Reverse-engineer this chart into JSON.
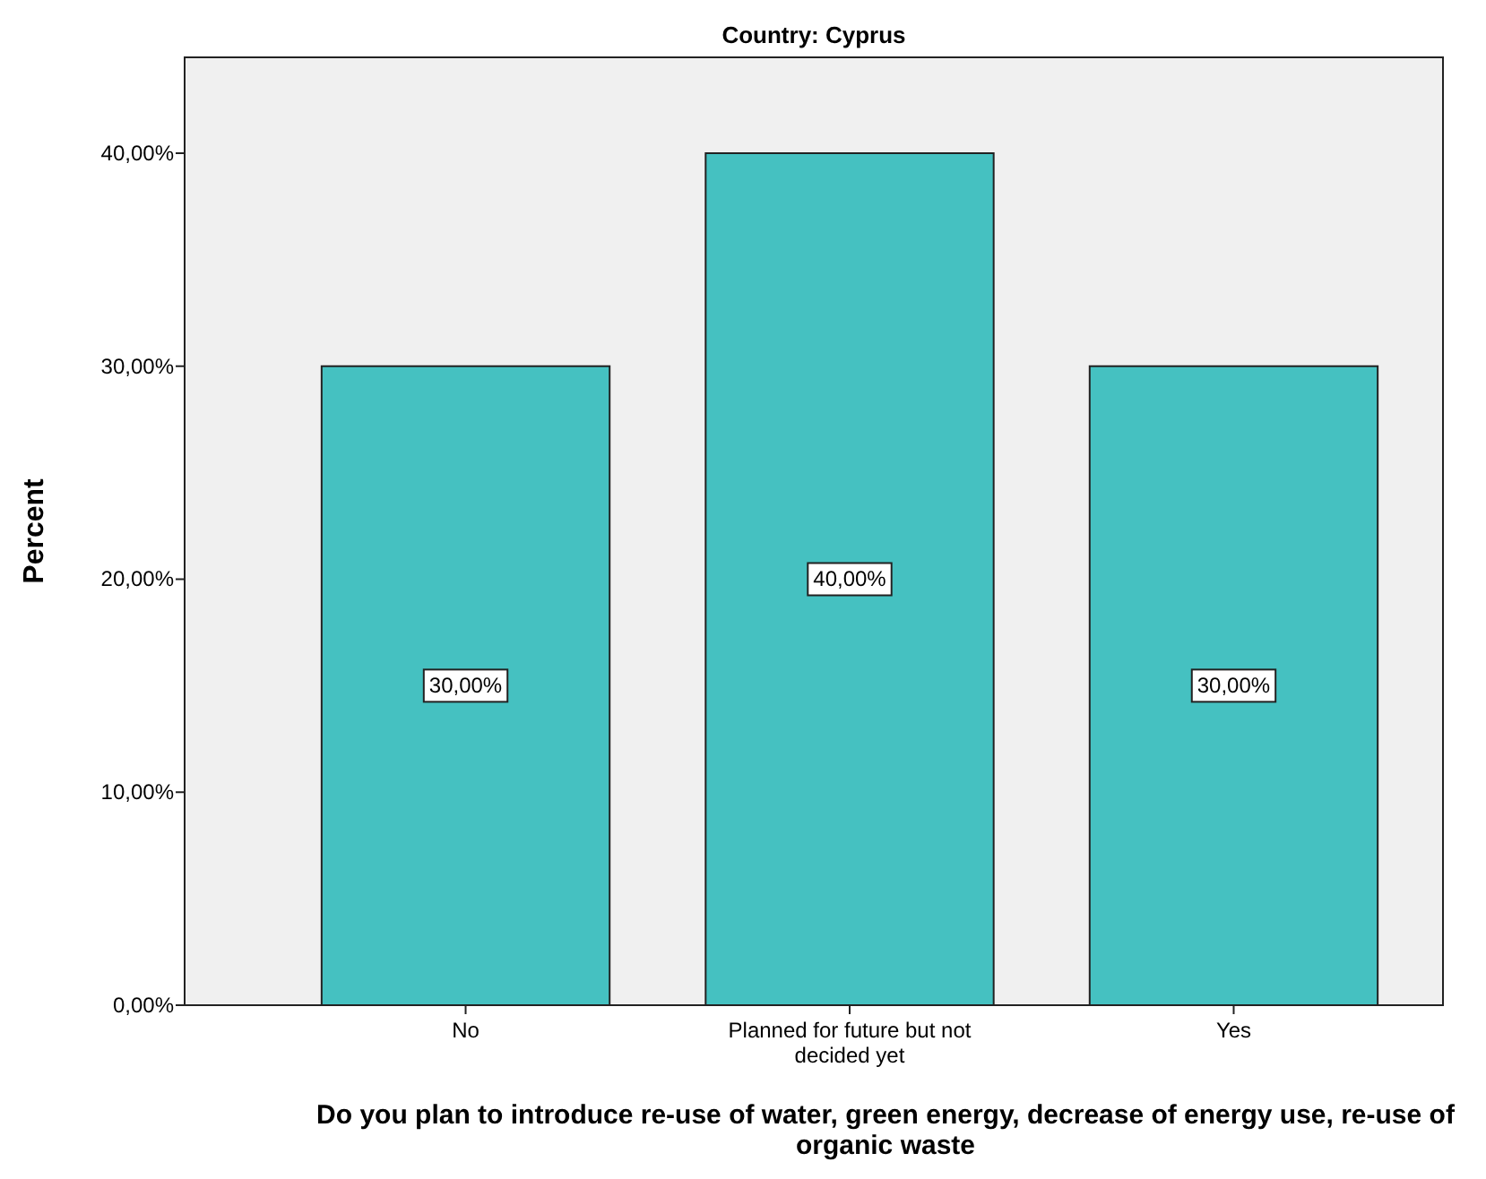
{
  "chart_data": {
    "type": "bar",
    "title": "Country: Cyprus",
    "xlabel": "Do you plan to introduce re-use of water, green energy, decrease of energy use, re-use of organic waste",
    "ylabel": "Percent",
    "categories": [
      "No",
      "Planned for future but not decided yet",
      "Yes"
    ],
    "values": [
      30,
      40,
      30
    ],
    "color": "#45c1c1",
    "value_labels": [
      "30,00%",
      "40,00%",
      "30,00%"
    ],
    "ylim": [
      0,
      44.5
    ],
    "yticks": [
      {
        "value": 0,
        "label": "0,00%"
      },
      {
        "value": 10,
        "label": "10,00%"
      },
      {
        "value": 20,
        "label": "20,00%"
      },
      {
        "value": 30,
        "label": "30,00%"
      },
      {
        "value": 40,
        "label": "40,00%"
      }
    ],
    "grid": false
  }
}
